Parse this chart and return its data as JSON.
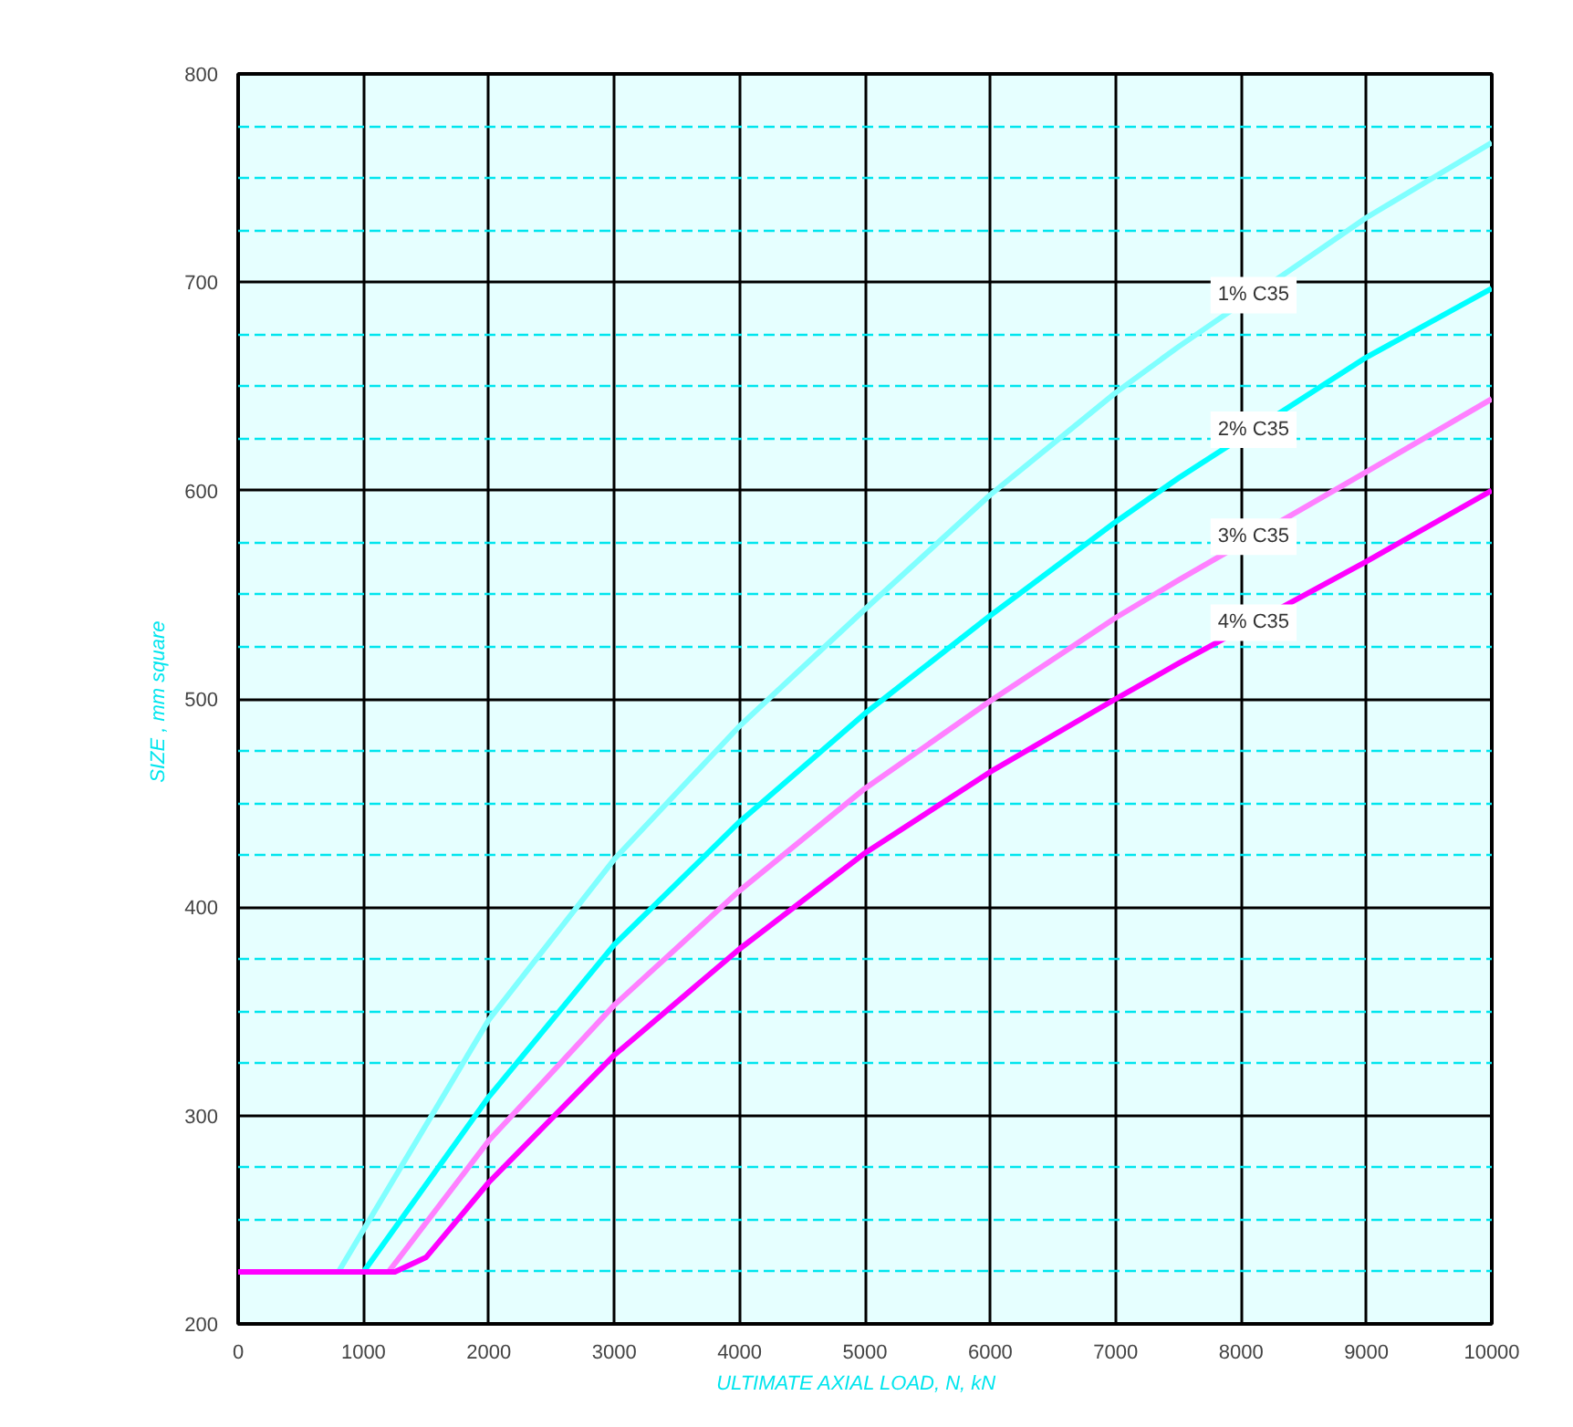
{
  "chart_data": {
    "type": "line",
    "xlabel": "ULTIMATE  AXIAL  LOAD,  N, kN",
    "ylabel": "SIZE ,  mm square",
    "xlim": [
      0,
      10000
    ],
    "ylim": [
      200,
      800
    ],
    "xticks": [
      0,
      1000,
      2000,
      3000,
      4000,
      5000,
      6000,
      7000,
      8000,
      9000,
      10000
    ],
    "yticks": [
      200,
      {
        "value": 225,
        "label": null
      },
      {
        "value": 250,
        "label": null
      },
      {
        "value": 275,
        "label": null
      },
      300,
      {
        "value": 325,
        "label": null
      },
      {
        "value": 350,
        "label": null
      },
      {
        "value": 375,
        "label": null
      },
      400,
      {
        "value": 425,
        "label": null
      },
      {
        "value": 450,
        "label": null
      },
      {
        "value": 475,
        "label": null
      },
      500,
      {
        "value": 525,
        "label": null
      },
      {
        "value": 550,
        "label": null
      },
      {
        "value": 575,
        "label": null
      },
      600,
      {
        "value": 625,
        "label": null
      },
      {
        "value": 650,
        "label": null
      },
      {
        "value": 675,
        "label": null
      },
      700,
      {
        "value": 725,
        "label": null
      },
      {
        "value": 750,
        "label": null
      },
      {
        "value": 775,
        "label": null
      },
      800
    ],
    "grid": true,
    "marker": "none",
    "line_style": "solid",
    "series": [
      {
        "color": "#80ffff",
        "x": [
          0,
          800,
          2000,
          3000,
          4000,
          5000,
          6000,
          7000,
          7500,
          9000,
          10000
        ],
        "values": [
          225,
          225,
          346,
          423,
          487,
          543,
          598,
          647,
          669,
          731,
          767
        ]
      },
      {
        "color": "#00ffff",
        "x": [
          0,
          1000,
          2000,
          3000,
          4000,
          5000,
          6000,
          7000,
          7500,
          9000,
          10000
        ],
        "values": [
          225,
          225,
          309,
          382,
          441,
          493,
          540,
          585,
          606,
          664,
          697
        ]
      },
      {
        "color": "#ff80ff",
        "x": [
          0,
          1200,
          2000,
          3000,
          4000,
          5000,
          6000,
          7000,
          7500,
          9000,
          10000
        ],
        "values": [
          225,
          225,
          288,
          353,
          408,
          457,
          499,
          539,
          557,
          609,
          644
        ]
      },
      {
        "color": "#ff00ff",
        "x": [
          0,
          1250,
          1500,
          2000,
          3000,
          4000,
          5000,
          6000,
          7000,
          7500,
          9000,
          10000
        ],
        "values": [
          225,
          225,
          232,
          268,
          329,
          380,
          426,
          465,
          500,
          517,
          566,
          600
        ]
      }
    ],
    "annotations": [
      "1% C35",
      "2% C35",
      "3% C35",
      "4% C35"
    ]
  }
}
